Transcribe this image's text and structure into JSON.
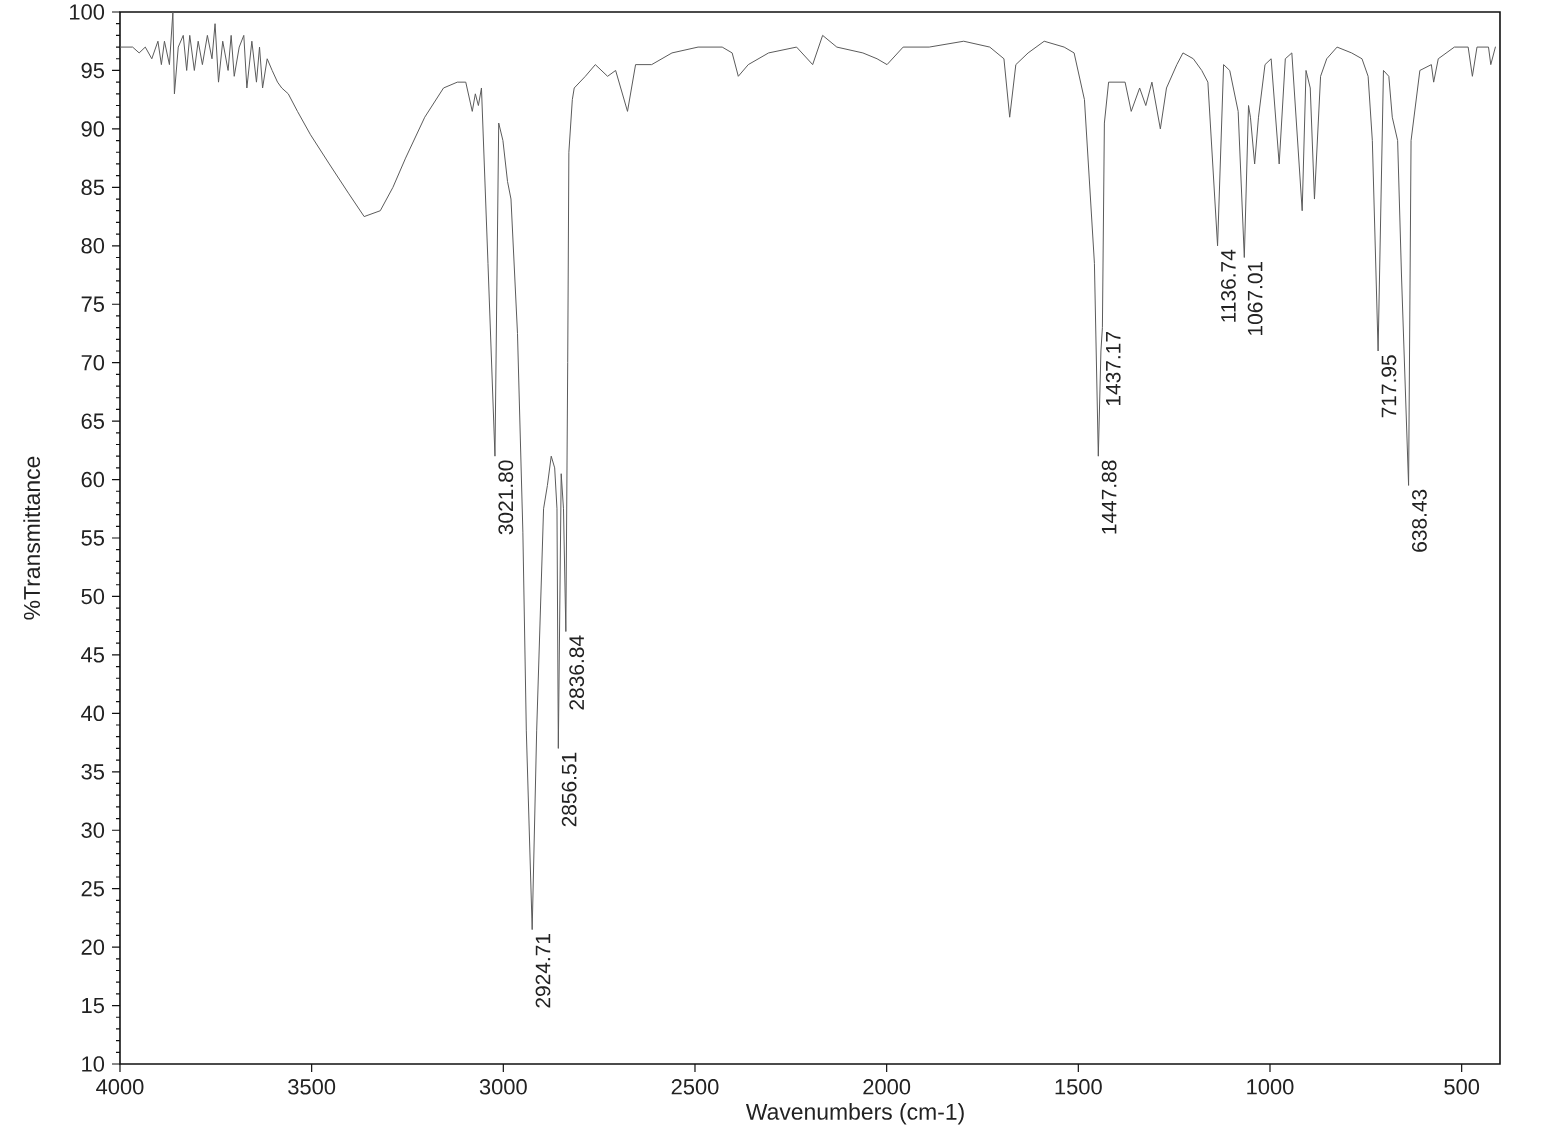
{
  "chart_data": {
    "type": "line",
    "xlabel": "Wavenumbers (cm-1)",
    "ylabel": "%Transmittance",
    "x": [
      4000,
      3967,
      3950,
      3934,
      3917,
      3901,
      3892,
      3884,
      3871,
      3862,
      3858,
      3848,
      3835,
      3826,
      3818,
      3806,
      3796,
      3785,
      3772,
      3760,
      3752,
      3743,
      3732,
      3718,
      3710,
      3702,
      3689,
      3677,
      3669,
      3656,
      3644,
      3636,
      3628,
      3616,
      3603,
      3589,
      3578,
      3561,
      3537,
      3503,
      3454,
      3404,
      3363,
      3321,
      3288,
      3255,
      3205,
      3156,
      3120,
      3098,
      3081,
      3073,
      3065,
      3057,
      3040,
      3021.8,
      3012,
      3001,
      2989,
      2980,
      2963,
      2949,
      2940,
      2924.71,
      2913,
      2895,
      2885,
      2875,
      2866,
      2860,
      2856.51,
      2849,
      2843,
      2836.84,
      2832,
      2829,
      2820,
      2815,
      2786,
      2760,
      2728,
      2707,
      2676,
      2655,
      2613,
      2560,
      2492,
      2429,
      2403,
      2387,
      2361,
      2308,
      2235,
      2193,
      2167,
      2130,
      2062,
      2025,
      1999,
      1957,
      1889,
      1799,
      1731,
      1694,
      1679,
      1663,
      1631,
      1589,
      1537,
      1511,
      1484,
      1458,
      1447.88,
      1441,
      1437.17,
      1432,
      1421,
      1378,
      1362,
      1340,
      1324,
      1308,
      1286,
      1270,
      1243,
      1227,
      1200,
      1178,
      1162,
      1136.74,
      1121,
      1105,
      1083,
      1067.01,
      1056,
      1051,
      1040,
      1030,
      1013,
      997,
      976,
      960,
      943,
      916,
      906,
      895,
      884,
      868,
      852,
      825,
      787,
      760,
      744,
      733,
      717.95,
      704,
      690,
      681,
      667,
      657,
      638.43,
      632,
      609,
      579,
      573,
      561,
      519,
      483,
      472,
      460,
      430,
      424,
      412
    ],
    "series": [
      {
        "color": "#5a5a5a",
        "values": [
          97,
          97,
          96.5,
          97,
          96,
          97.5,
          95.5,
          97.5,
          95.5,
          100,
          93,
          97,
          98,
          95,
          98,
          95,
          97.5,
          95.5,
          98,
          96,
          99,
          94,
          97.5,
          95,
          98,
          94.5,
          97,
          98,
          93.5,
          97.5,
          94,
          97,
          93.5,
          96,
          95,
          94,
          93.5,
          93,
          91.5,
          89.5,
          87,
          84.5,
          82.5,
          83,
          85,
          87.5,
          91,
          93.5,
          94,
          94,
          91.5,
          93,
          92,
          93.5,
          78.5,
          62,
          90.5,
          89,
          85.5,
          84,
          72.5,
          55.5,
          38.5,
          21.5,
          38.5,
          57.5,
          59.5,
          62,
          61,
          57.5,
          37,
          60.5,
          57.5,
          47,
          70,
          88,
          92.5,
          93.5,
          94.5,
          95.5,
          94.5,
          95,
          91.5,
          95.5,
          95.5,
          96.5,
          97,
          97,
          96.5,
          94.5,
          95.5,
          96.5,
          97,
          95.5,
          98,
          97,
          96.5,
          96,
          95.5,
          97,
          97,
          97.5,
          97,
          96,
          91,
          95.5,
          96.5,
          97.5,
          97,
          96.5,
          92.5,
          78.5,
          62,
          71,
          73,
          90.5,
          94,
          94,
          91.5,
          93.5,
          92,
          94,
          90,
          93.5,
          95.5,
          96.5,
          96,
          95,
          94,
          80,
          95.5,
          95,
          91.5,
          79,
          92,
          91,
          87,
          91,
          95.5,
          96,
          87,
          96,
          96.5,
          83,
          95,
          93.5,
          84,
          94.5,
          96,
          97,
          96.5,
          96,
          94.5,
          89,
          71,
          95,
          94.5,
          91,
          89,
          77.5,
          59.5,
          89,
          95,
          95.5,
          94,
          96,
          97,
          97,
          94.5,
          97,
          97,
          95.5,
          97
        ]
      }
    ],
    "xlim": [
      4000,
      400
    ],
    "ylim": [
      10,
      100
    ],
    "xticks": [
      4000,
      3500,
      3000,
      2500,
      2000,
      1500,
      1000,
      500
    ],
    "yticks": [
      10,
      15,
      20,
      25,
      30,
      35,
      40,
      45,
      50,
      55,
      60,
      65,
      70,
      75,
      80,
      85,
      90,
      95,
      100
    ],
    "annotations": [
      {
        "text": "3021.80",
        "x": 3021.8,
        "y": 62
      },
      {
        "text": "2924.71",
        "x": 2924.71,
        "y": 21.5
      },
      {
        "text": "2856.51",
        "x": 2856.51,
        "y": 37
      },
      {
        "text": "2836.84",
        "x": 2836.84,
        "y": 47
      },
      {
        "text": "1447.88",
        "x": 1447.88,
        "y": 62
      },
      {
        "text": "1437.17",
        "x": 1437.17,
        "y": 73
      },
      {
        "text": "1136.74",
        "x": 1136.74,
        "y": 80
      },
      {
        "text": "1067.01",
        "x": 1067.01,
        "y": 79
      },
      {
        "text": "717.95",
        "x": 717.95,
        "y": 71
      },
      {
        "text": "638.43",
        "x": 638.43,
        "y": 59.5
      }
    ]
  }
}
